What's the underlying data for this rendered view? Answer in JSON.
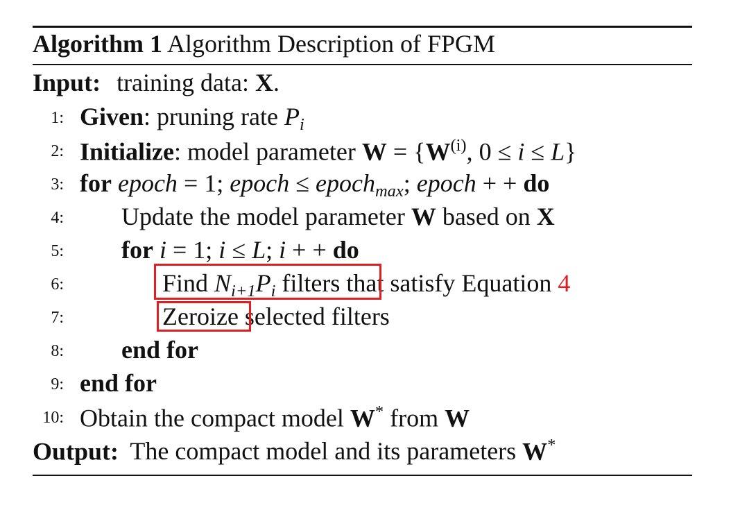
{
  "algorithm": {
    "label": "Algorithm 1",
    "title": "Algorithm Description of FPGM"
  },
  "input": {
    "keyword": "Input:",
    "text": "training data: ",
    "symbol": "X",
    "end": "."
  },
  "lines": [
    {
      "num": "1:",
      "kw": "Given",
      "rest": ": pruning rate ",
      "math": "P",
      "sub": "i"
    },
    {
      "num": "2:",
      "kw": "Initialize",
      "rest": ": model parameter ",
      "W": "W",
      "eq": " = {",
      "W2": "W",
      "sup": "(i)",
      "tail": ", 0 ≤ ",
      "i": "i",
      "le": " ≤ ",
      "L": "L",
      "close": "}"
    },
    {
      "num": "3:",
      "kw": "for",
      "a": "epoch",
      "b": " = 1; ",
      "c": "epoch",
      "d": " ≤ ",
      "e": "epoch",
      "esub": "max",
      "f": "; ",
      "g": "epoch",
      "h": " + + ",
      "kw2": "do"
    },
    {
      "num": "4:",
      "text": "Update the model parameter ",
      "W": "W",
      "mid": " based on ",
      "X": "X"
    },
    {
      "num": "5:",
      "kw": "for",
      "a": "i",
      "b": " = 1; ",
      "c": "i",
      "d": " ≤ ",
      "e": "L",
      "f": "; ",
      "g": "i",
      "h": " + + ",
      "kw2": "do"
    },
    {
      "num": "6:",
      "t1": "Find ",
      "N": "N",
      "nsub": "i+1",
      "P": "P",
      "psub": "i",
      "t2": " filters",
      "t3": " that satisfy Equation ",
      "ref": "4"
    },
    {
      "num": "7:",
      "t1": "Zeroize",
      "t2": " selected filters"
    },
    {
      "num": "8:",
      "kw": "end for"
    },
    {
      "num": "9:",
      "kw": "end for"
    },
    {
      "num": "10:",
      "text": "Obtain the compact model ",
      "W": "W",
      "star": "*",
      "mid": " from ",
      "W2": "W"
    }
  ],
  "output": {
    "keyword": "Output:",
    "text": " The compact model and its parameters ",
    "W": "W",
    "star": "*"
  },
  "colors": {
    "text": "#111111",
    "highlight_box": "#e02020",
    "reference": "#e02020"
  }
}
